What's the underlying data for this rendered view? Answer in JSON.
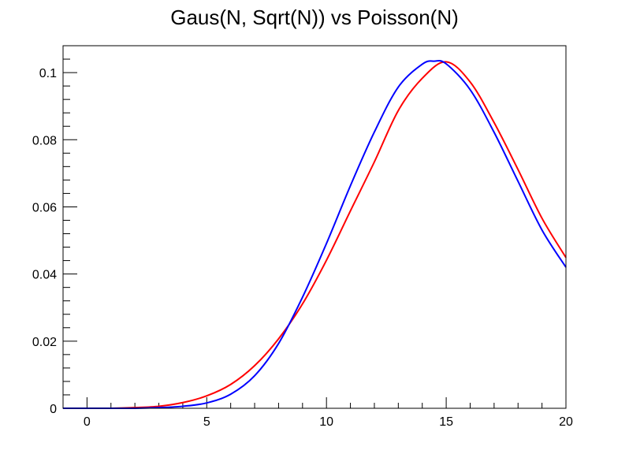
{
  "chart_data": {
    "type": "line",
    "title": "Gaus(N, Sqrt(N)) vs Poisson(N)",
    "xlabel": "",
    "ylabel": "",
    "xlim": [
      -1,
      20
    ],
    "ylim": [
      0,
      0.108
    ],
    "xticks": [
      0,
      5,
      10,
      15,
      20
    ],
    "xtick_labels": [
      "0",
      "5",
      "10",
      "15",
      "20"
    ],
    "yticks": [
      0,
      0.02,
      0.04,
      0.06,
      0.08,
      0.1
    ],
    "ytick_labels": [
      "0",
      "0.02",
      "0.04",
      "0.06",
      "0.08",
      "0.1"
    ],
    "grid": false,
    "series": [
      {
        "name": "Poisson(N)",
        "color": "#ff0000",
        "x": [
          -1,
          0,
          1,
          2,
          3,
          4,
          5,
          6,
          7,
          8,
          9,
          10,
          11,
          12,
          13,
          14,
          15,
          16,
          17,
          18,
          19,
          20
        ],
        "values": [
          0.0,
          0.0,
          0.0,
          0.0002,
          0.0006,
          0.0017,
          0.0037,
          0.0071,
          0.0127,
          0.0207,
          0.0311,
          0.0441,
          0.0588,
          0.0734,
          0.0887,
          0.0983,
          0.1032,
          0.0972,
          0.0851,
          0.0711,
          0.0566,
          0.0449
        ]
      },
      {
        "name": "Gaus(N, Sqrt(N))",
        "color": "#0000ff",
        "x": [
          -1,
          0,
          1,
          2,
          3,
          4,
          5,
          6,
          7,
          8,
          9,
          10,
          11,
          12,
          13,
          14,
          14.5,
          15,
          16,
          17,
          18,
          19,
          20
        ],
        "values": [
          0.0,
          0.0,
          0.0,
          0.0,
          0.0002,
          0.0006,
          0.0016,
          0.0042,
          0.0097,
          0.0193,
          0.0331,
          0.0491,
          0.0663,
          0.0823,
          0.0957,
          0.1025,
          0.1034,
          0.1026,
          0.0949,
          0.0822,
          0.0676,
          0.0531,
          0.042
        ]
      }
    ]
  }
}
